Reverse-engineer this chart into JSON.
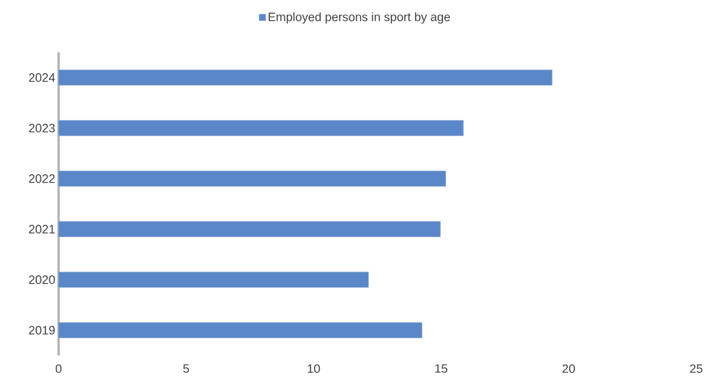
{
  "chart_data": {
    "type": "bar",
    "orientation": "horizontal",
    "categories": [
      "2024",
      "2023",
      "2022",
      "2021",
      "2020",
      "2019"
    ],
    "series": [
      {
        "name": "Employed persons in sport by age",
        "color": "#5b87c8",
        "values": [
          19.35,
          15.87,
          15.18,
          14.97,
          12.15,
          14.25
        ]
      }
    ],
    "xlim": [
      0,
      25
    ],
    "xticks": [
      0,
      5,
      10,
      15,
      20,
      25
    ],
    "grid": false,
    "legend": "top"
  }
}
